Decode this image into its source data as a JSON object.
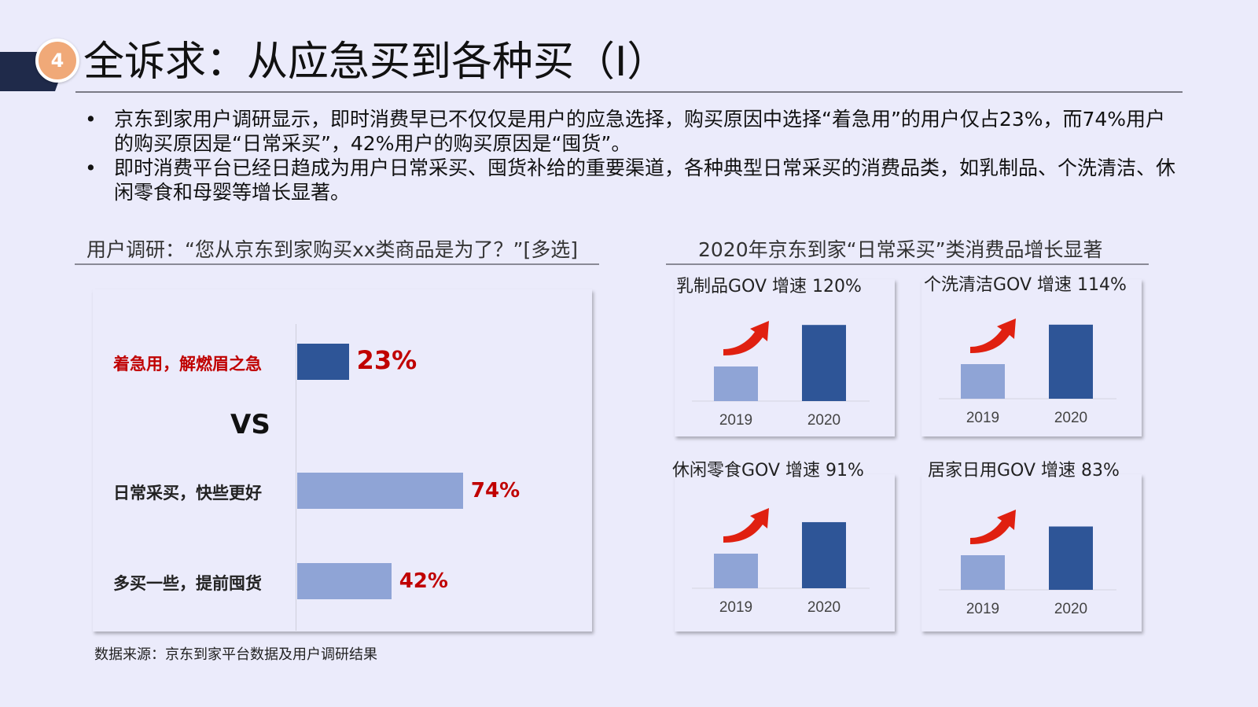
{
  "header": {
    "badge_number": "4",
    "title": "全诉求：从应急买到各种买（I）"
  },
  "bullets": [
    "京东到家用户调研显示，即时消费早已不仅仅是用户的应急选择，购买原因中选择“着急用”的用户仅占23%，而74%用户的购买原因是“日常采买”，42%用户的购买原因是“囤货”。",
    "即时消费平台已经日趋成为用户日常采买、囤货补给的重要渠道，各种典型日常采买的消费品类，如乳制品、个洗清洁、休闲零食和母婴等增长显著。"
  ],
  "bullet_symbol": "•",
  "left_section": {
    "title": "用户调研：“您从京东到家购买xx类商品是为了？”[多选]",
    "vs_text": "VS"
  },
  "right_section": {
    "title": "2020年京东到家“日常采买”类消费品增长显著"
  },
  "source": "数据来源：京东到家平台数据及用户调研结果",
  "colors": {
    "dark_bar": "#2e5597",
    "light_bar": "#8fa4d6",
    "accent_red": "#c00000",
    "arrow_red": "#e02010",
    "header_navy": "#1f2a4a",
    "badge_orange": "#f0a978"
  },
  "icons": {
    "growth_arrow": "curved-up-arrow-icon"
  },
  "chart_data": [
    {
      "type": "bar",
      "orientation": "horizontal",
      "categories": [
        "着急用，解燃眉之急",
        "日常采买，快些更好",
        "多买一些，提前囤货"
      ],
      "values": [
        23,
        74,
        42
      ],
      "value_labels": [
        "23%",
        "74%",
        "42%"
      ],
      "title": "",
      "xlabel": "",
      "ylabel": "",
      "xlim": [
        0,
        100
      ],
      "grid": false
    },
    {
      "type": "bar",
      "title": "乳制品GOV 增速 120%",
      "categories": [
        "2019",
        "2020"
      ],
      "values": [
        1.0,
        2.2
      ]
    },
    {
      "type": "bar",
      "title": "个洗清洁GOV 增速 114%",
      "categories": [
        "2019",
        "2020"
      ],
      "values": [
        1.0,
        2.14
      ]
    },
    {
      "type": "bar",
      "title": "休闲零食GOV 增速 91%",
      "categories": [
        "2019",
        "2020"
      ],
      "values": [
        1.0,
        1.91
      ]
    },
    {
      "type": "bar",
      "title": "居家日用GOV 增速 83%",
      "categories": [
        "2019",
        "2020"
      ],
      "values": [
        1.0,
        1.83
      ]
    }
  ]
}
